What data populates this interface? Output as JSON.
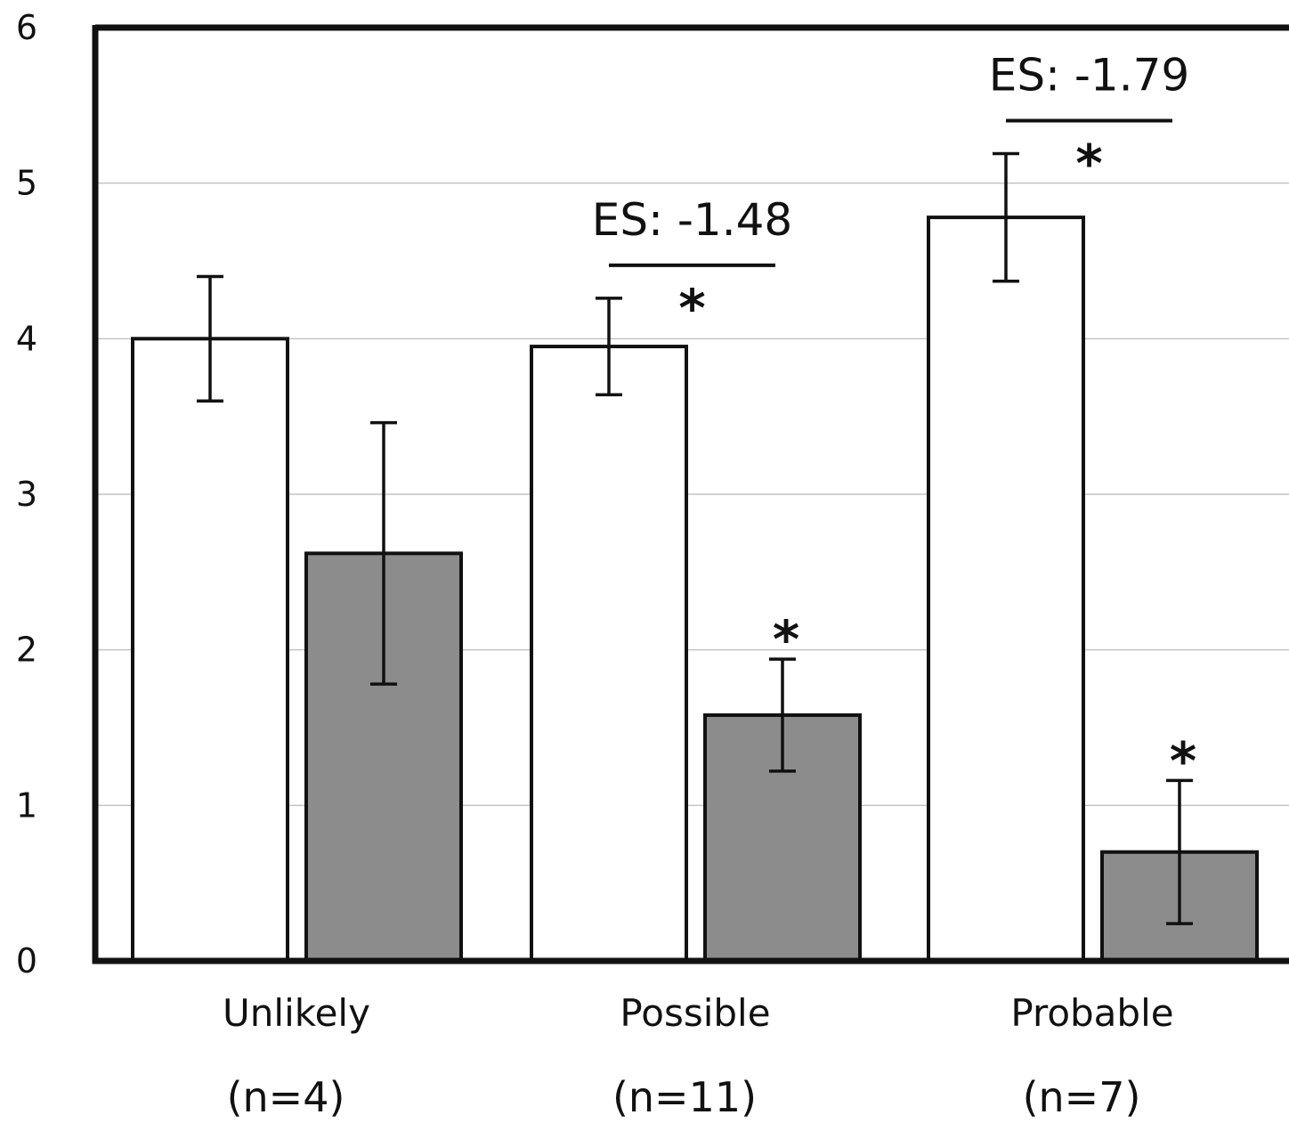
{
  "chart_data": {
    "type": "bar",
    "ylim": [
      0,
      6
    ],
    "yticks": [
      "0",
      "1",
      "2",
      "3",
      "4",
      "5",
      "6"
    ],
    "grid": true,
    "categories": [
      "Unlikely",
      "Possible",
      "Probable"
    ],
    "category_n": [
      "(n=4)",
      "(n=11)",
      "(n=7)"
    ],
    "series": [
      {
        "color": "#ffffff",
        "values": [
          4.0,
          3.95,
          4.78
        ],
        "error": [
          0.4,
          0.31,
          0.41
        ]
      },
      {
        "color": "#8c8c8c",
        "values": [
          2.62,
          1.58,
          0.7
        ],
        "error": [
          0.84,
          0.36,
          0.46
        ]
      }
    ],
    "annotations": {
      "effect_sizes": [
        {
          "category": 1,
          "text": "ES: -1.48",
          "star": "*"
        },
        {
          "category": 2,
          "text": "ES: -1.79",
          "star": "*"
        }
      ],
      "series2_stars": [
        {
          "category": 1,
          "text": "*"
        },
        {
          "category": 2,
          "text": "*"
        }
      ]
    }
  }
}
